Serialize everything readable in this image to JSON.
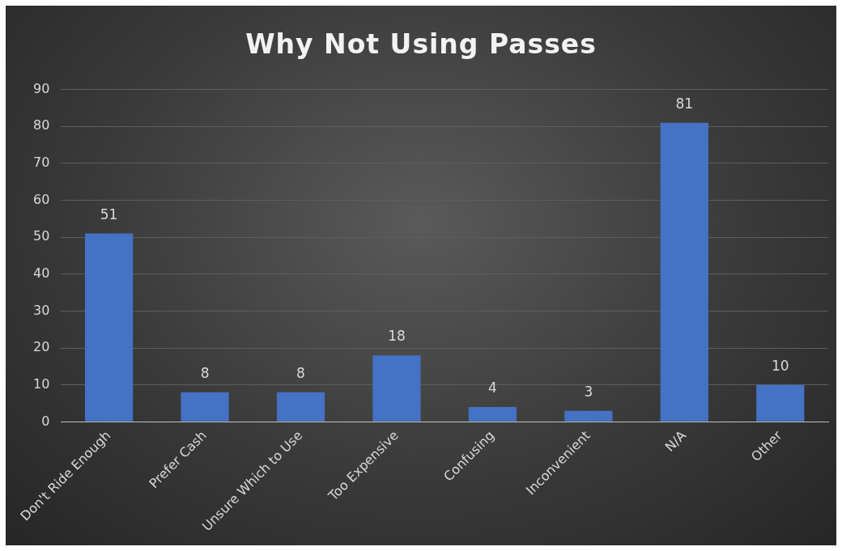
{
  "chart_data": {
    "type": "bar",
    "title": "Why Not Using Passes",
    "categories": [
      "Don't Ride Enough",
      "Prefer Cash",
      "Unsure Which to Use",
      "Too Expensive",
      "Confusing",
      "Inconvenient",
      "N/A",
      "Other"
    ],
    "values": [
      51,
      8,
      8,
      18,
      4,
      3,
      81,
      10
    ],
    "color": "#4472c4",
    "ylim": [
      0,
      90
    ],
    "yticks": [
      0,
      10,
      20,
      30,
      40,
      50,
      60,
      70,
      80,
      90
    ],
    "grid": "y",
    "data_labels": true
  }
}
